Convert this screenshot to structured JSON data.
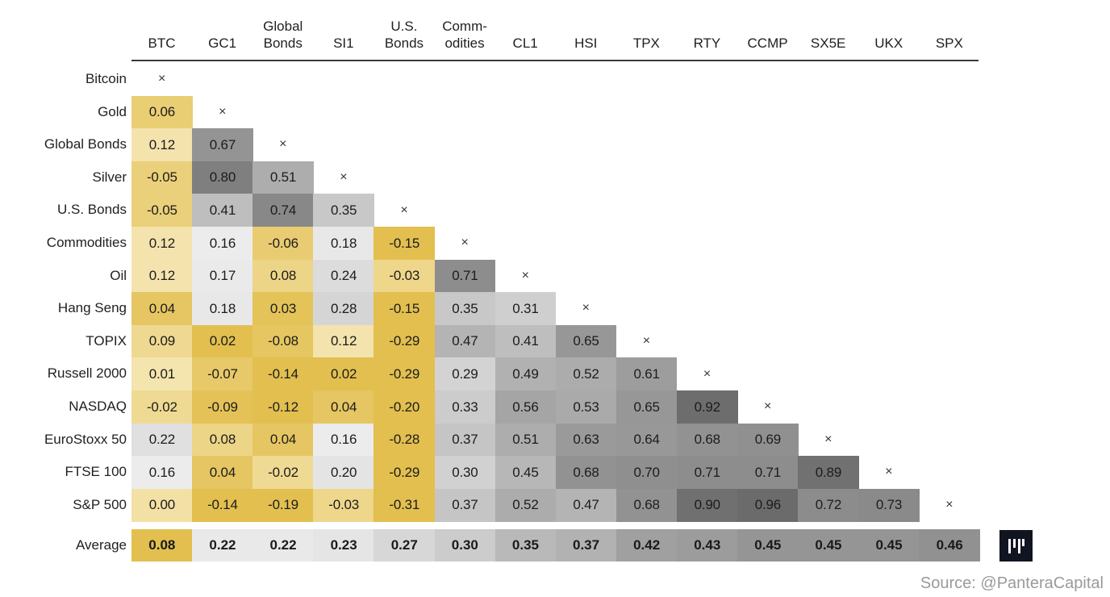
{
  "chart_data": {
    "type": "heatmap",
    "title": "",
    "columns": [
      "BTC",
      "GC1",
      "Global\nBonds",
      "SI1",
      "U.S.\nBonds",
      "Comm-\nodities",
      "CL1",
      "HSI",
      "TPX",
      "RTY",
      "CCMP",
      "SX5E",
      "UKX",
      "SPX"
    ],
    "rows": [
      "Bitcoin",
      "Gold",
      "Global Bonds",
      "Silver",
      "U.S. Bonds",
      "Commodities",
      "Oil",
      "Hang Seng",
      "TOPIX",
      "Russell 2000",
      "NASDAQ",
      "EuroStoxx 50",
      "FTSE 100",
      "S&P 500"
    ],
    "diagonal_marker": "×",
    "values": [
      [],
      [
        "0.06"
      ],
      [
        "0.12",
        "0.67"
      ],
      [
        "-0.05",
        "0.80",
        "0.51"
      ],
      [
        "-0.05",
        "0.41",
        "0.74",
        "0.35"
      ],
      [
        "0.12",
        "0.16",
        "-0.06",
        "0.18",
        "-0.15"
      ],
      [
        "0.12",
        "0.17",
        "0.08",
        "0.24",
        "-0.03",
        "0.71"
      ],
      [
        "0.04",
        "0.18",
        "0.03",
        "0.28",
        "-0.15",
        "0.35",
        "0.31"
      ],
      [
        "0.09",
        "0.02",
        "-0.08",
        "0.12",
        "-0.29",
        "0.47",
        "0.41",
        "0.65"
      ],
      [
        "0.01",
        "-0.07",
        "-0.14",
        "0.02",
        "-0.29",
        "0.29",
        "0.49",
        "0.52",
        "0.61"
      ],
      [
        "-0.02",
        "-0.09",
        "-0.12",
        "0.04",
        "-0.20",
        "0.33",
        "0.56",
        "0.53",
        "0.65",
        "0.92"
      ],
      [
        "0.22",
        "0.08",
        "0.04",
        "0.16",
        "-0.28",
        "0.37",
        "0.51",
        "0.63",
        "0.64",
        "0.68",
        "0.69"
      ],
      [
        "0.16",
        "0.04",
        "-0.02",
        "0.20",
        "-0.29",
        "0.30",
        "0.45",
        "0.68",
        "0.70",
        "0.71",
        "0.71",
        "0.89"
      ],
      [
        "0.00",
        "-0.14",
        "-0.19",
        "-0.03",
        "-0.31",
        "0.37",
        "0.52",
        "0.47",
        "0.68",
        "0.90",
        "0.96",
        "0.72",
        "0.73"
      ]
    ],
    "average_label": "Average",
    "averages": [
      "0.08",
      "0.22",
      "0.22",
      "0.23",
      "0.27",
      "0.30",
      "0.35",
      "0.37",
      "0.42",
      "0.43",
      "0.45",
      "0.45",
      "0.45",
      "0.46"
    ],
    "colors": {
      "negative_strong": "#e2bf4f",
      "negative_light": "#f6e7b6",
      "neutral": "#f3f3f3",
      "positive_strong": "#6b6b6b"
    }
  },
  "source": "Source: @PanteraCapital",
  "logo_icon": "pantera-logo-icon"
}
